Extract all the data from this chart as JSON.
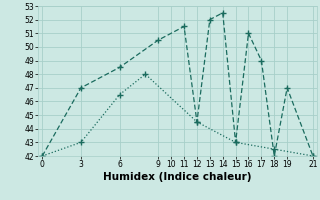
{
  "xlabel": "Humidex (Indice chaleur)",
  "line1_x": [
    0,
    3,
    6,
    9,
    11,
    12,
    13,
    14,
    15,
    16,
    17,
    18,
    19,
    21
  ],
  "line1_y": [
    42,
    47,
    48.5,
    50.5,
    51.5,
    44.5,
    52,
    52.5,
    43,
    51,
    49,
    42,
    47,
    42
  ],
  "line2_x": [
    0,
    3,
    6,
    8,
    12,
    15,
    18,
    21
  ],
  "line2_y": [
    42,
    43,
    46.5,
    48,
    44.5,
    43,
    42.5,
    42
  ],
  "line_color": "#1a6b5e",
  "bg_color": "#cce8e3",
  "grid_color": "#a8cfc9",
  "xlim": [
    -0.3,
    21.3
  ],
  "ylim": [
    42,
    53
  ],
  "xticks": [
    0,
    3,
    6,
    9,
    10,
    11,
    12,
    13,
    14,
    15,
    16,
    17,
    18,
    19,
    21
  ],
  "yticks": [
    42,
    43,
    44,
    45,
    46,
    47,
    48,
    49,
    50,
    51,
    52,
    53
  ],
  "tick_fontsize": 5.5,
  "xlabel_fontsize": 7.5
}
